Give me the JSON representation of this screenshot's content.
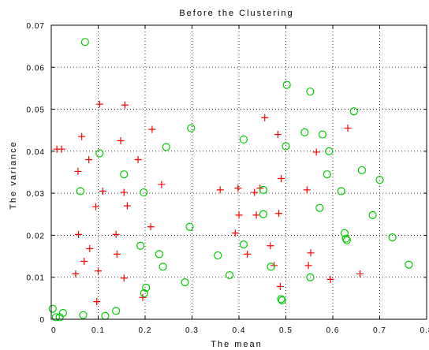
{
  "chart_data": {
    "type": "scatter",
    "title": "Before the Clustering",
    "xlabel": "The mean",
    "ylabel": "The variance",
    "xlim": [
      0,
      0.8
    ],
    "ylim": [
      0,
      0.07
    ],
    "xticks": [
      0,
      0.1,
      0.2,
      0.3,
      0.4,
      0.5,
      0.6,
      0.7,
      0.8
    ],
    "xtick_labels": [
      "0",
      "0.1",
      "0.2",
      "0.3",
      "0.4",
      "0.5",
      "0.6",
      "0.7",
      "0.8"
    ],
    "yticks": [
      0,
      0.01,
      0.02,
      0.03,
      0.04,
      0.05,
      0.06,
      0.07
    ],
    "ytick_labels": [
      "0",
      "0.01",
      "0.02",
      "0.03",
      "0.04",
      "0.05",
      "0.06",
      "0.07"
    ],
    "grid": true,
    "grid_style": "dotted",
    "series": [
      {
        "marker": "plus",
        "color": "#ff0000",
        "points": [
          [
            0.012,
            0.0405
          ],
          [
            0.022,
            0.0405
          ],
          [
            0.065,
            0.0435
          ],
          [
            0.103,
            0.0512
          ],
          [
            0.157,
            0.051
          ],
          [
            0.08,
            0.038
          ],
          [
            0.148,
            0.0425
          ],
          [
            0.215,
            0.0452
          ],
          [
            0.057,
            0.0352
          ],
          [
            0.185,
            0.038
          ],
          [
            0.11,
            0.0305
          ],
          [
            0.155,
            0.0302
          ],
          [
            0.235,
            0.0321
          ],
          [
            0.095,
            0.0268
          ],
          [
            0.162,
            0.027
          ],
          [
            0.058,
            0.0202
          ],
          [
            0.138,
            0.0202
          ],
          [
            0.212,
            0.022
          ],
          [
            0.082,
            0.0168
          ],
          [
            0.07,
            0.0138
          ],
          [
            0.14,
            0.0155
          ],
          [
            0.1,
            0.0115
          ],
          [
            0.155,
            0.0098
          ],
          [
            0.052,
            0.0108
          ],
          [
            0.097,
            0.0042
          ],
          [
            0.195,
            0.0052
          ],
          [
            0.36,
            0.0308
          ],
          [
            0.398,
            0.0312
          ],
          [
            0.433,
            0.0302
          ],
          [
            0.445,
            0.0312
          ],
          [
            0.455,
            0.048
          ],
          [
            0.483,
            0.044
          ],
          [
            0.49,
            0.0335
          ],
          [
            0.4,
            0.0248
          ],
          [
            0.437,
            0.0248
          ],
          [
            0.485,
            0.0252
          ],
          [
            0.392,
            0.0205
          ],
          [
            0.467,
            0.0175
          ],
          [
            0.418,
            0.0155
          ],
          [
            0.475,
            0.0128
          ],
          [
            0.488,
            0.0078
          ],
          [
            0.545,
            0.0308
          ],
          [
            0.553,
            0.0158
          ],
          [
            0.548,
            0.0128
          ],
          [
            0.565,
            0.0398
          ],
          [
            0.632,
            0.0455
          ],
          [
            0.595,
            0.0095
          ],
          [
            0.658,
            0.0108
          ]
        ]
      },
      {
        "marker": "circle",
        "color": "#00cc00",
        "points": [
          [
            0.072,
            0.066
          ],
          [
            0.003,
            0.0025
          ],
          [
            0.01,
            0.0005
          ],
          [
            0.018,
            0.0005
          ],
          [
            0.025,
            0.0015
          ],
          [
            0.068,
            0.001
          ],
          [
            0.115,
            0.0008
          ],
          [
            0.138,
            0.002
          ],
          [
            0.062,
            0.0305
          ],
          [
            0.103,
            0.0395
          ],
          [
            0.155,
            0.0345
          ],
          [
            0.197,
            0.0302
          ],
          [
            0.245,
            0.041
          ],
          [
            0.298,
            0.0455
          ],
          [
            0.19,
            0.0175
          ],
          [
            0.23,
            0.0155
          ],
          [
            0.238,
            0.0125
          ],
          [
            0.198,
            0.0062
          ],
          [
            0.202,
            0.0075
          ],
          [
            0.285,
            0.0088
          ],
          [
            0.295,
            0.022
          ],
          [
            0.355,
            0.0152
          ],
          [
            0.38,
            0.0105
          ],
          [
            0.41,
            0.0428
          ],
          [
            0.41,
            0.0178
          ],
          [
            0.452,
            0.0308
          ],
          [
            0.452,
            0.025
          ],
          [
            0.468,
            0.0125
          ],
          [
            0.49,
            0.0048
          ],
          [
            0.492,
            0.0045
          ],
          [
            0.502,
            0.0558
          ],
          [
            0.5,
            0.0412
          ],
          [
            0.54,
            0.0445
          ],
          [
            0.552,
            0.0542
          ],
          [
            0.578,
            0.044
          ],
          [
            0.588,
            0.0345
          ],
          [
            0.592,
            0.04
          ],
          [
            0.572,
            0.0265
          ],
          [
            0.552,
            0.01
          ],
          [
            0.618,
            0.0305
          ],
          [
            0.625,
            0.0205
          ],
          [
            0.628,
            0.0192
          ],
          [
            0.63,
            0.0188
          ],
          [
            0.645,
            0.0495
          ],
          [
            0.662,
            0.0355
          ],
          [
            0.685,
            0.0248
          ],
          [
            0.7,
            0.0332
          ],
          [
            0.727,
            0.0195
          ],
          [
            0.762,
            0.013
          ]
        ]
      }
    ]
  }
}
